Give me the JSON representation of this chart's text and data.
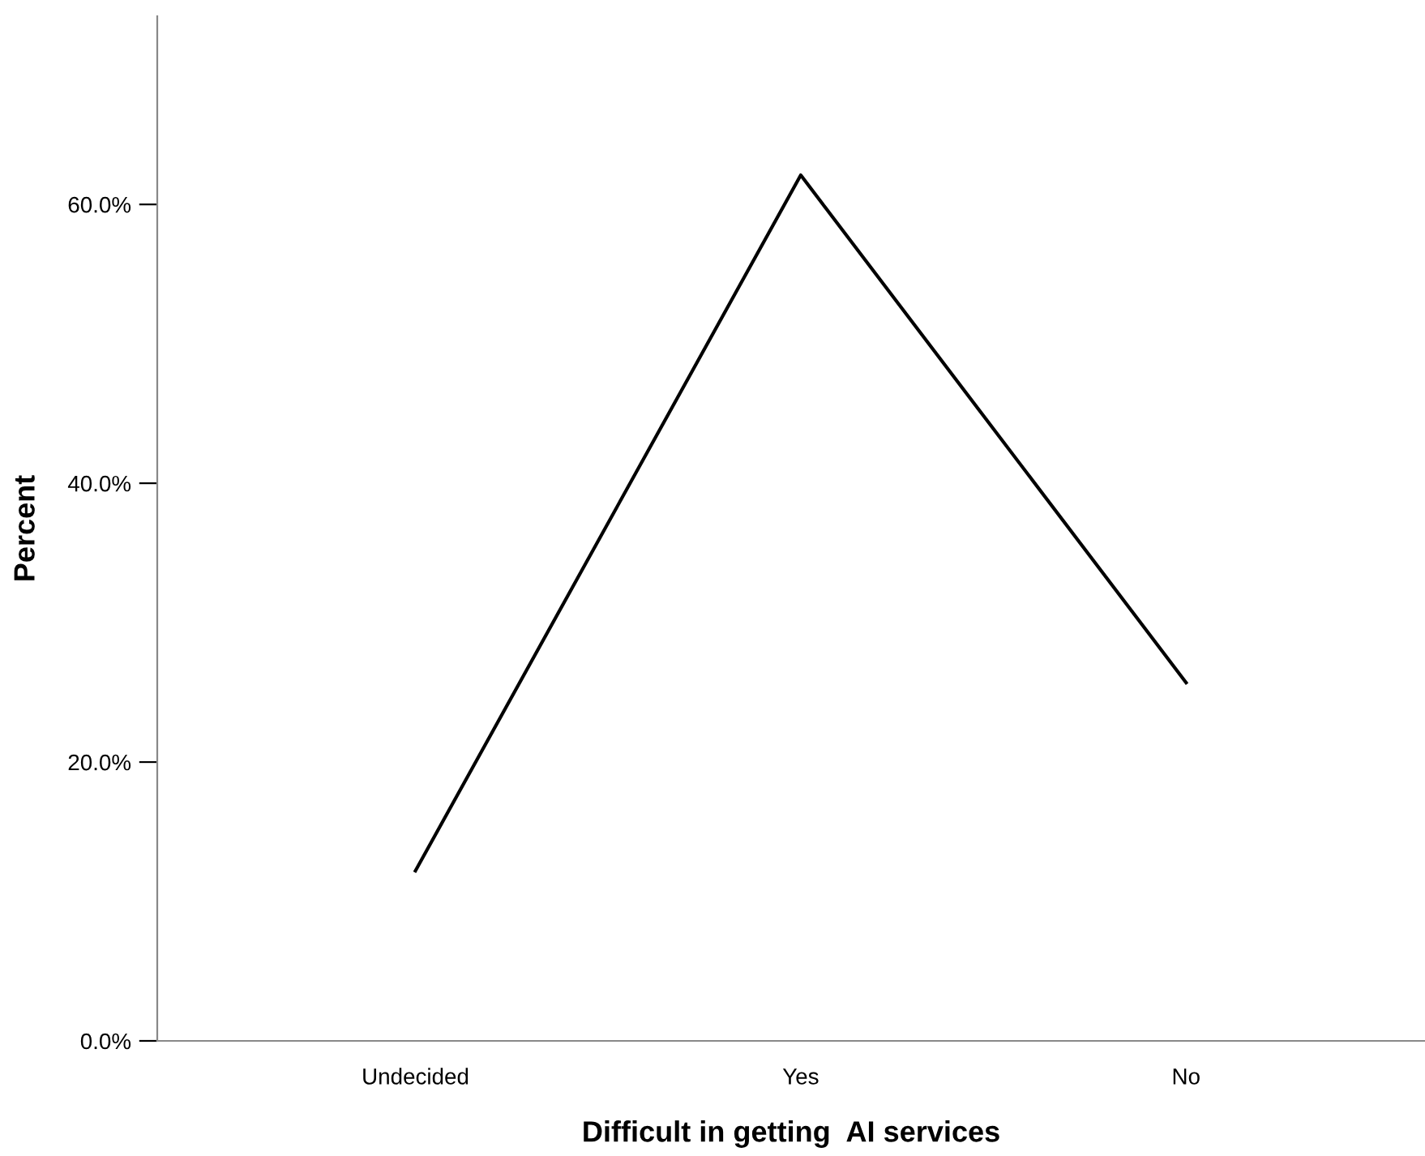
{
  "chart_data": {
    "type": "line",
    "xlabel": "Difficult in getting  AI services",
    "ylabel": "Percent",
    "categories": [
      "Undecided",
      "Yes",
      "No"
    ],
    "series": [
      {
        "color": "#000000",
        "values": [
          12.2,
          62.1,
          25.7
        ]
      }
    ],
    "ylim": [
      0,
      73.5
    ],
    "yticks": [
      {
        "value": 0,
        "label": "0.0%"
      },
      {
        "value": 20,
        "label": "20.0%"
      },
      {
        "value": 40,
        "label": "40.0%"
      },
      {
        "value": 60,
        "label": "60.0%"
      }
    ],
    "grid": false,
    "legend": false,
    "marker": "none",
    "line_style": "solid"
  }
}
